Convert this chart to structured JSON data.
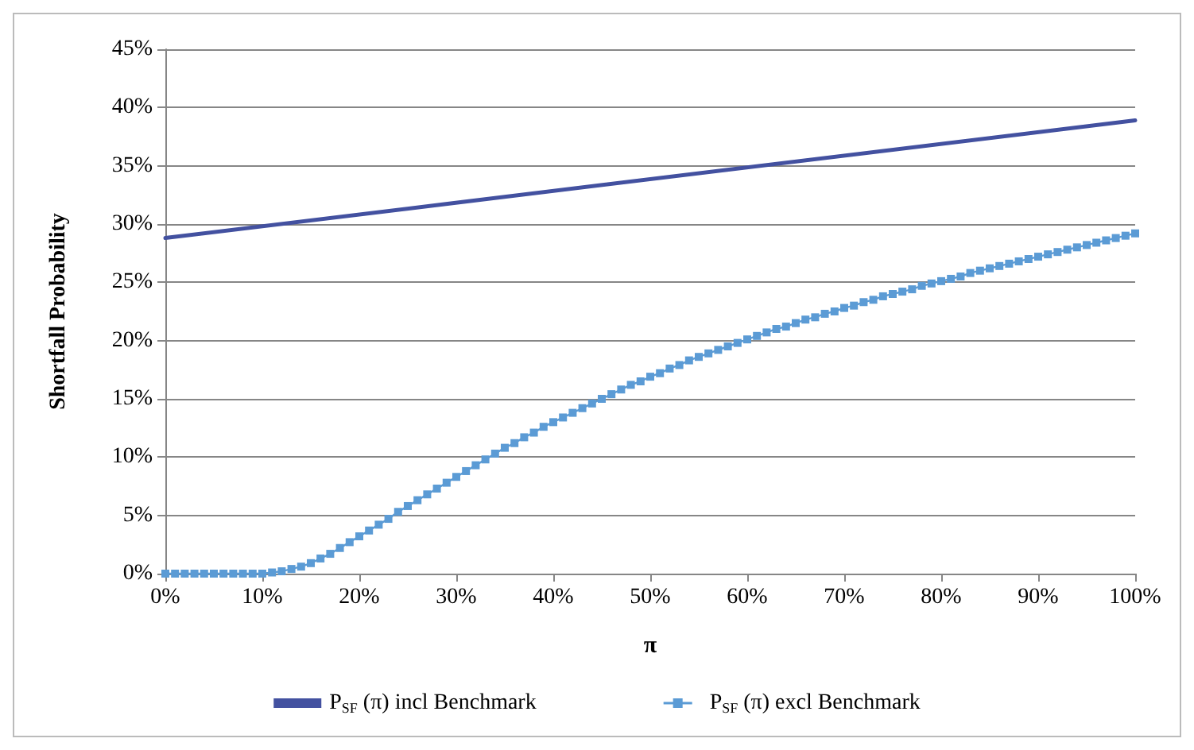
{
  "chart_data": {
    "type": "line",
    "xlabel": "π",
    "ylabel": "Shortfall Probability",
    "x": [
      0,
      1,
      2,
      3,
      4,
      5,
      6,
      7,
      8,
      9,
      10,
      11,
      12,
      13,
      14,
      15,
      16,
      17,
      18,
      19,
      20,
      21,
      22,
      23,
      24,
      25,
      26,
      27,
      28,
      29,
      30,
      31,
      32,
      33,
      34,
      35,
      36,
      37,
      38,
      39,
      40,
      41,
      42,
      43,
      44,
      45,
      46,
      47,
      48,
      49,
      50,
      51,
      52,
      53,
      54,
      55,
      56,
      57,
      58,
      59,
      60,
      61,
      62,
      63,
      64,
      65,
      66,
      67,
      68,
      69,
      70,
      71,
      72,
      73,
      74,
      75,
      76,
      77,
      78,
      79,
      80,
      81,
      82,
      83,
      84,
      85,
      86,
      87,
      88,
      89,
      90,
      91,
      92,
      93,
      94,
      95,
      96,
      97,
      98,
      99,
      100
    ],
    "series": [
      {
        "name": "P$_{SF}$ (π) incl Benchmark",
        "color": "#4351a0",
        "marker": "none",
        "x": [
          0,
          100
        ],
        "values": [
          28.8,
          38.9
        ]
      },
      {
        "name": "P$_{SF}$ (π) excl Benchmark",
        "color": "#5b9bd5",
        "marker": "square",
        "values": [
          0,
          0,
          0,
          0,
          0,
          0,
          0,
          0,
          0,
          0,
          0,
          0.1,
          0.2,
          0.4,
          0.6,
          0.9,
          1.3,
          1.7,
          2.2,
          2.7,
          3.2,
          3.7,
          4.2,
          4.7,
          5.3,
          5.8,
          6.3,
          6.8,
          7.3,
          7.8,
          8.3,
          8.8,
          9.3,
          9.8,
          10.3,
          10.8,
          11.2,
          11.7,
          12.1,
          12.6,
          13,
          13.4,
          13.8,
          14.2,
          14.6,
          15,
          15.4,
          15.8,
          16.2,
          16.5,
          16.9,
          17.2,
          17.6,
          17.9,
          18.3,
          18.6,
          18.9,
          19.2,
          19.5,
          19.8,
          20.1,
          20.4,
          20.7,
          21,
          21.2,
          21.5,
          21.8,
          22,
          22.3,
          22.5,
          22.8,
          23,
          23.3,
          23.5,
          23.8,
          24,
          24.2,
          24.4,
          24.7,
          24.9,
          25.1,
          25.3,
          25.5,
          25.8,
          26,
          26.2,
          26.4,
          26.6,
          26.8,
          27,
          27.2,
          27.4,
          27.6,
          27.8,
          28,
          28.2,
          28.4,
          28.6,
          28.8,
          29,
          29.2
        ]
      }
    ],
    "xlim": [
      0,
      100
    ],
    "xticks": [
      {
        "value": 0,
        "label": "0%"
      },
      {
        "value": 10,
        "label": "10%"
      },
      {
        "value": 20,
        "label": "20%"
      },
      {
        "value": 30,
        "label": "30%"
      },
      {
        "value": 40,
        "label": "40%"
      },
      {
        "value": 50,
        "label": "50%"
      },
      {
        "value": 60,
        "label": "60%"
      },
      {
        "value": 70,
        "label": "70%"
      },
      {
        "value": 80,
        "label": "80%"
      },
      {
        "value": 90,
        "label": "90%"
      },
      {
        "value": 100,
        "label": "100%"
      }
    ],
    "ylim": [
      0,
      45
    ],
    "yticks": [
      {
        "value": 0,
        "label": "0%"
      },
      {
        "value": 5,
        "label": "5%"
      },
      {
        "value": 10,
        "label": "10%"
      },
      {
        "value": 15,
        "label": "15%"
      },
      {
        "value": 20,
        "label": "20%"
      },
      {
        "value": 25,
        "label": "25%"
      },
      {
        "value": 30,
        "label": "30%"
      },
      {
        "value": 35,
        "label": "35%"
      },
      {
        "value": 40,
        "label": "40%"
      },
      {
        "value": 45,
        "label": "45%"
      }
    ],
    "grid": "y",
    "legend": "bottom"
  }
}
